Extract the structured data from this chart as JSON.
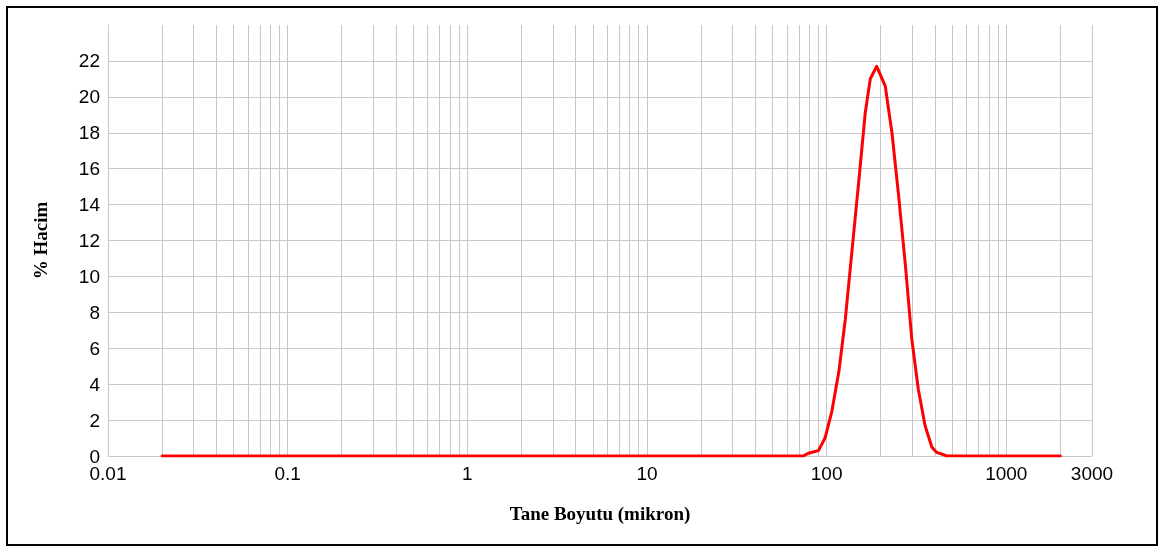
{
  "chart_data": {
    "type": "line",
    "xlabel": "Tane Boyutu (mikron)",
    "ylabel": "% Hacim",
    "log": "x",
    "grid": true,
    "marker": "none",
    "line_style": "solid",
    "xlim": [
      0.01,
      3000
    ],
    "xticks": [
      0.01,
      {
        "value": 0.02,
        "label": null
      },
      {
        "value": 0.03,
        "label": null
      },
      {
        "value": 0.04,
        "label": null
      },
      {
        "value": 0.05,
        "label": null
      },
      {
        "value": 0.06,
        "label": null
      },
      {
        "value": 0.07,
        "label": null
      },
      {
        "value": 0.08,
        "label": null
      },
      {
        "value": 0.09,
        "label": null
      },
      0.1,
      {
        "value": 0.2,
        "label": null
      },
      {
        "value": 0.3,
        "label": null
      },
      {
        "value": 0.4,
        "label": null
      },
      {
        "value": 0.5,
        "label": null
      },
      {
        "value": 0.6,
        "label": null
      },
      {
        "value": 0.7,
        "label": null
      },
      {
        "value": 0.8,
        "label": null
      },
      {
        "value": 0.9,
        "label": null
      },
      1,
      {
        "value": 2,
        "label": null
      },
      {
        "value": 3,
        "label": null
      },
      {
        "value": 4,
        "label": null
      },
      {
        "value": 5,
        "label": null
      },
      {
        "value": 6,
        "label": null
      },
      {
        "value": 7,
        "label": null
      },
      {
        "value": 8,
        "label": null
      },
      {
        "value": 9,
        "label": null
      },
      10,
      {
        "value": 20,
        "label": null
      },
      {
        "value": 30,
        "label": null
      },
      {
        "value": 40,
        "label": null
      },
      {
        "value": 50,
        "label": null
      },
      {
        "value": 60,
        "label": null
      },
      {
        "value": 70,
        "label": null
      },
      {
        "value": 80,
        "label": null
      },
      {
        "value": 90,
        "label": null
      },
      100,
      {
        "value": 200,
        "label": null
      },
      {
        "value": 300,
        "label": null
      },
      {
        "value": 400,
        "label": null
      },
      {
        "value": 500,
        "label": null
      },
      {
        "value": 600,
        "label": null
      },
      {
        "value": 700,
        "label": null
      },
      {
        "value": 800,
        "label": null
      },
      {
        "value": 900,
        "label": null
      },
      1000,
      {
        "value": 2000,
        "label": null
      },
      3000
    ],
    "ylim": [
      0,
      24
    ],
    "yticks": [
      0,
      2,
      4,
      6,
      8,
      10,
      12,
      14,
      16,
      18,
      20,
      22
    ],
    "series": [
      {
        "color": "#ff0000",
        "x": [
          0.02,
          74,
          79,
          90,
          98,
          107,
          117,
          127,
          138,
          151,
          164,
          175,
          190,
          212,
          231,
          251,
          274,
          298,
          324,
          353,
          385,
          410,
          440,
          465,
          2000
        ],
        "values": [
          0,
          0,
          0.15,
          0.3,
          1.0,
          2.5,
          4.7,
          7.6,
          11.3,
          15.3,
          19.1,
          21.0,
          21.7,
          20.6,
          18.0,
          14.6,
          10.7,
          6.5,
          3.7,
          1.7,
          0.5,
          0.2,
          0.1,
          0,
          0
        ]
      }
    ]
  }
}
